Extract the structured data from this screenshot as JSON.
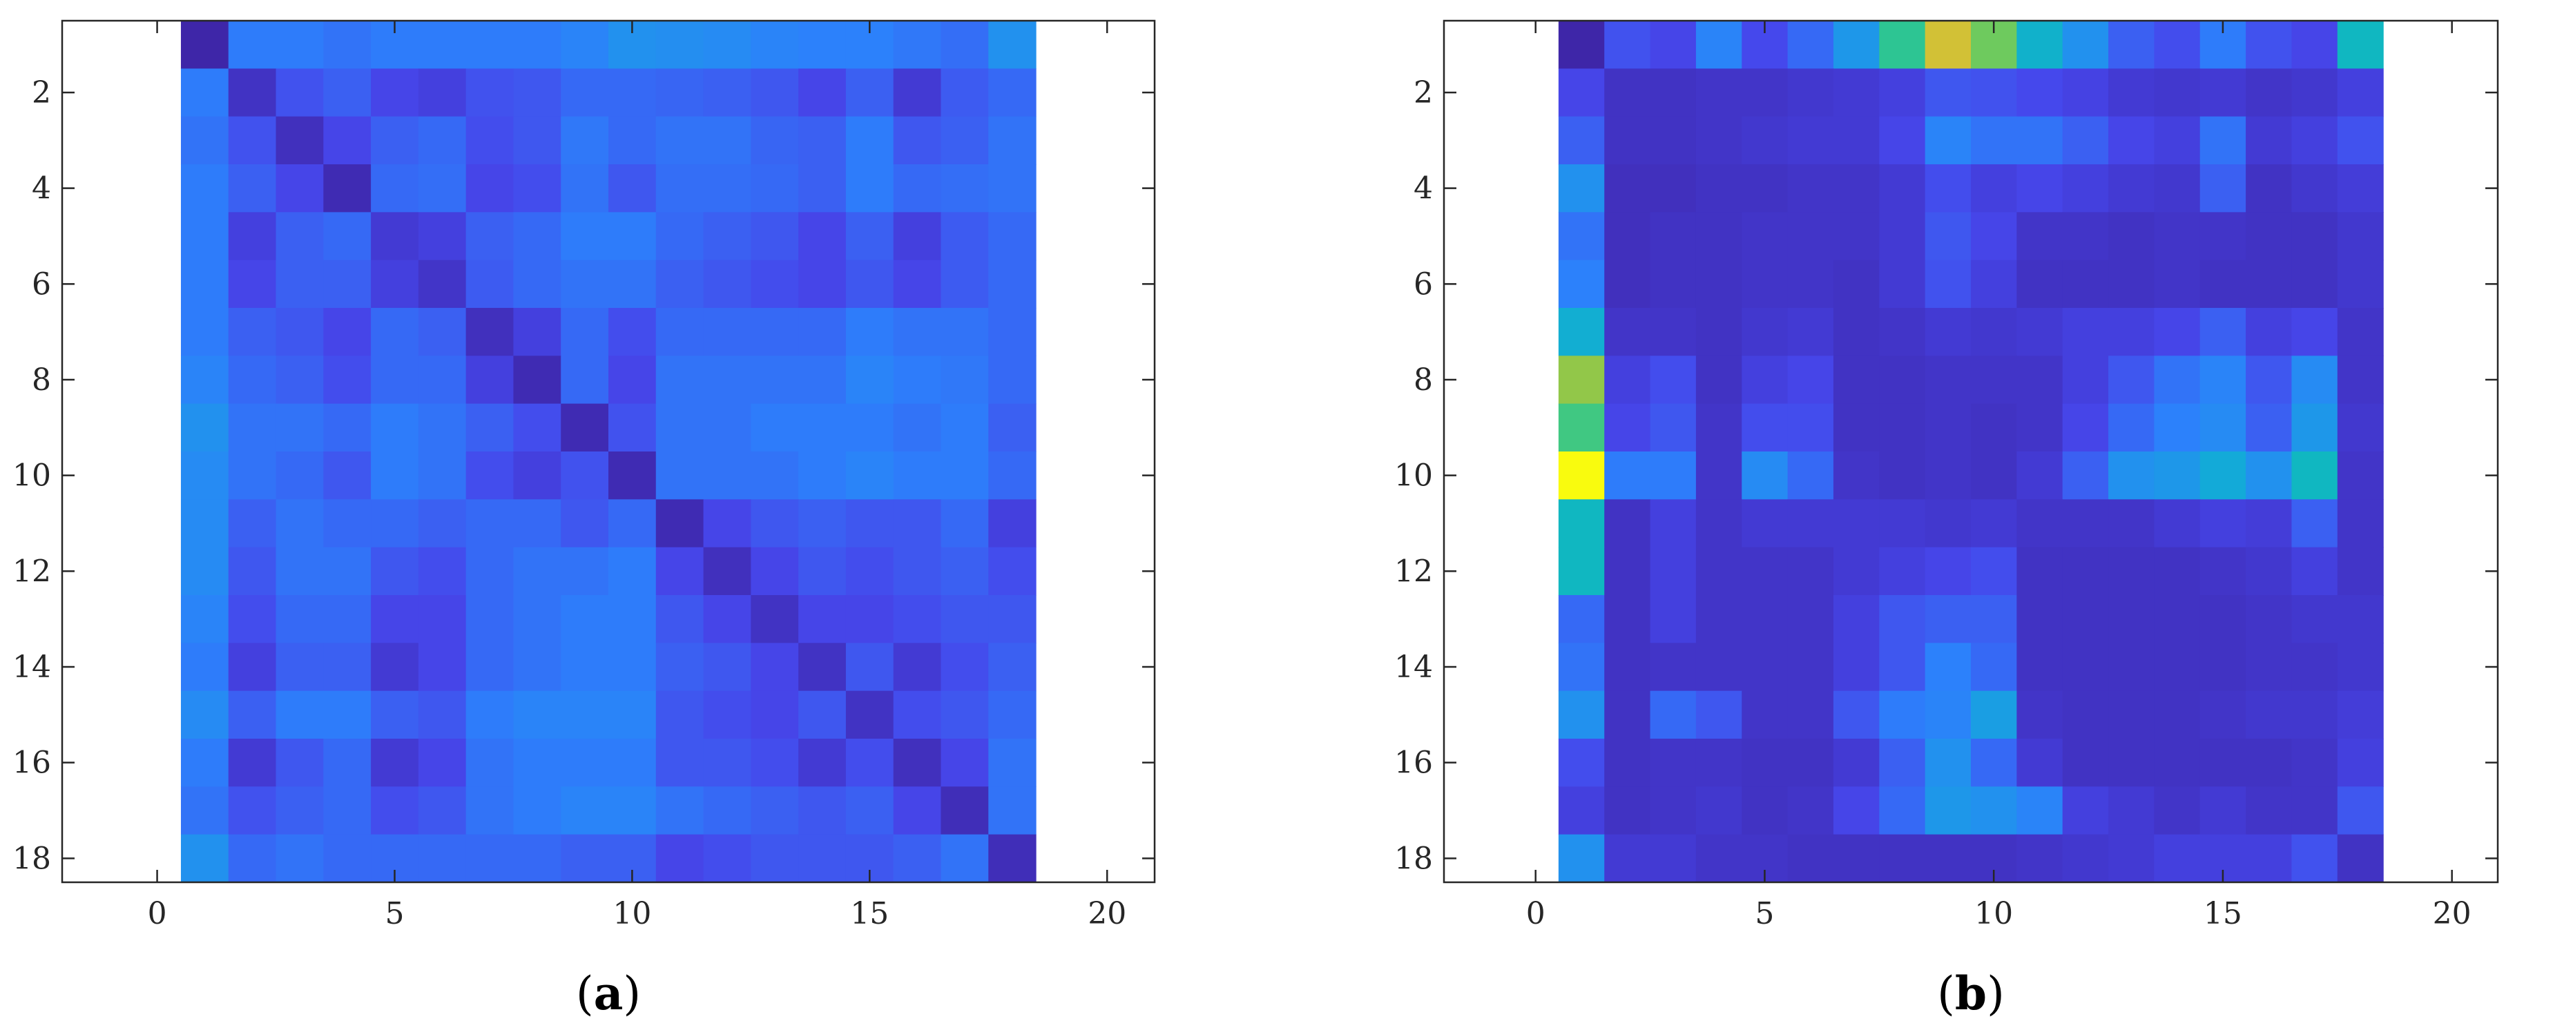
{
  "chart_data": [
    {
      "type": "heatmap",
      "panel_label": "a",
      "title": "",
      "xlabel": "",
      "ylabel": "",
      "xlim": [
        -2,
        21
      ],
      "ylim": [
        0.5,
        18.5
      ],
      "y_reversed": true,
      "x_ticks": [
        0,
        5,
        10,
        15,
        20
      ],
      "y_ticks": [
        2,
        4,
        6,
        8,
        10,
        12,
        14,
        16,
        18
      ],
      "colormap": "parula",
      "color_range": [
        0,
        1
      ],
      "rows": 18,
      "cols": 18,
      "values": [
        [
          0.0,
          0.24,
          0.24,
          0.22,
          0.24,
          0.24,
          0.24,
          0.24,
          0.26,
          0.3,
          0.29,
          0.28,
          0.26,
          0.25,
          0.25,
          0.23,
          0.21,
          0.3
        ],
        [
          0.24,
          0.05,
          0.15,
          0.18,
          0.12,
          0.1,
          0.15,
          0.16,
          0.2,
          0.2,
          0.19,
          0.18,
          0.16,
          0.12,
          0.18,
          0.08,
          0.17,
          0.2
        ],
        [
          0.22,
          0.15,
          0.04,
          0.12,
          0.18,
          0.2,
          0.14,
          0.16,
          0.23,
          0.2,
          0.22,
          0.22,
          0.19,
          0.18,
          0.24,
          0.16,
          0.18,
          0.22
        ],
        [
          0.24,
          0.18,
          0.12,
          0.02,
          0.2,
          0.21,
          0.12,
          0.14,
          0.22,
          0.16,
          0.21,
          0.21,
          0.2,
          0.18,
          0.24,
          0.2,
          0.21,
          0.22
        ],
        [
          0.24,
          0.1,
          0.18,
          0.2,
          0.08,
          0.1,
          0.18,
          0.2,
          0.24,
          0.24,
          0.2,
          0.18,
          0.16,
          0.12,
          0.18,
          0.1,
          0.17,
          0.2
        ],
        [
          0.24,
          0.12,
          0.18,
          0.18,
          0.1,
          0.06,
          0.17,
          0.2,
          0.22,
          0.22,
          0.18,
          0.16,
          0.14,
          0.12,
          0.16,
          0.12,
          0.17,
          0.2
        ],
        [
          0.24,
          0.18,
          0.16,
          0.12,
          0.2,
          0.18,
          0.04,
          0.1,
          0.2,
          0.14,
          0.2,
          0.2,
          0.2,
          0.2,
          0.24,
          0.22,
          0.22,
          0.2
        ],
        [
          0.26,
          0.2,
          0.18,
          0.14,
          0.2,
          0.2,
          0.1,
          0.02,
          0.2,
          0.12,
          0.22,
          0.22,
          0.22,
          0.22,
          0.26,
          0.24,
          0.23,
          0.2
        ],
        [
          0.3,
          0.22,
          0.22,
          0.2,
          0.24,
          0.22,
          0.18,
          0.14,
          0.02,
          0.15,
          0.22,
          0.22,
          0.24,
          0.24,
          0.24,
          0.22,
          0.24,
          0.18
        ],
        [
          0.28,
          0.22,
          0.2,
          0.16,
          0.24,
          0.22,
          0.14,
          0.1,
          0.15,
          0.02,
          0.22,
          0.22,
          0.22,
          0.24,
          0.26,
          0.24,
          0.24,
          0.2
        ],
        [
          0.28,
          0.18,
          0.22,
          0.2,
          0.2,
          0.18,
          0.2,
          0.2,
          0.16,
          0.2,
          0.02,
          0.12,
          0.16,
          0.18,
          0.16,
          0.16,
          0.2,
          0.1
        ],
        [
          0.28,
          0.16,
          0.22,
          0.22,
          0.16,
          0.14,
          0.2,
          0.22,
          0.22,
          0.24,
          0.12,
          0.04,
          0.12,
          0.16,
          0.14,
          0.16,
          0.18,
          0.14
        ],
        [
          0.26,
          0.14,
          0.2,
          0.2,
          0.12,
          0.12,
          0.2,
          0.22,
          0.24,
          0.24,
          0.16,
          0.12,
          0.05,
          0.12,
          0.12,
          0.14,
          0.16,
          0.16
        ],
        [
          0.24,
          0.1,
          0.18,
          0.18,
          0.08,
          0.12,
          0.2,
          0.22,
          0.24,
          0.24,
          0.18,
          0.16,
          0.12,
          0.05,
          0.16,
          0.08,
          0.14,
          0.18
        ],
        [
          0.28,
          0.18,
          0.24,
          0.24,
          0.18,
          0.16,
          0.24,
          0.26,
          0.26,
          0.26,
          0.16,
          0.14,
          0.12,
          0.16,
          0.05,
          0.14,
          0.16,
          0.2
        ],
        [
          0.24,
          0.08,
          0.16,
          0.2,
          0.08,
          0.12,
          0.22,
          0.24,
          0.24,
          0.24,
          0.16,
          0.16,
          0.14,
          0.08,
          0.14,
          0.04,
          0.12,
          0.22
        ],
        [
          0.22,
          0.15,
          0.18,
          0.2,
          0.14,
          0.16,
          0.22,
          0.24,
          0.26,
          0.26,
          0.22,
          0.2,
          0.18,
          0.16,
          0.18,
          0.12,
          0.03,
          0.22
        ],
        [
          0.3,
          0.2,
          0.22,
          0.2,
          0.2,
          0.2,
          0.2,
          0.2,
          0.18,
          0.18,
          0.12,
          0.14,
          0.16,
          0.16,
          0.16,
          0.18,
          0.22,
          0.03
        ]
      ]
    },
    {
      "type": "heatmap",
      "panel_label": "b",
      "title": "",
      "xlabel": "",
      "ylabel": "",
      "xlim": [
        -2,
        21
      ],
      "ylim": [
        0.5,
        18.5
      ],
      "y_reversed": true,
      "x_ticks": [
        0,
        5,
        10,
        15,
        20
      ],
      "y_ticks": [
        2,
        4,
        6,
        8,
        10,
        12,
        14,
        16,
        18
      ],
      "colormap": "parula",
      "color_range": [
        0,
        1
      ],
      "rows": 18,
      "cols": 18,
      "values": [
        [
          0.0,
          0.15,
          0.12,
          0.26,
          0.13,
          0.2,
          0.32,
          0.55,
          0.8,
          0.65,
          0.42,
          0.3,
          0.18,
          0.14,
          0.24,
          0.15,
          0.12,
          0.45
        ],
        [
          0.12,
          0.05,
          0.05,
          0.06,
          0.06,
          0.07,
          0.08,
          0.1,
          0.16,
          0.15,
          0.13,
          0.11,
          0.08,
          0.07,
          0.08,
          0.06,
          0.07,
          0.1
        ],
        [
          0.18,
          0.05,
          0.05,
          0.06,
          0.07,
          0.08,
          0.08,
          0.12,
          0.26,
          0.22,
          0.22,
          0.18,
          0.12,
          0.1,
          0.22,
          0.08,
          0.1,
          0.15
        ],
        [
          0.3,
          0.04,
          0.04,
          0.05,
          0.05,
          0.06,
          0.06,
          0.08,
          0.14,
          0.1,
          0.12,
          0.1,
          0.08,
          0.07,
          0.18,
          0.05,
          0.07,
          0.09
        ],
        [
          0.22,
          0.04,
          0.05,
          0.05,
          0.06,
          0.06,
          0.06,
          0.08,
          0.16,
          0.12,
          0.06,
          0.06,
          0.05,
          0.06,
          0.06,
          0.05,
          0.05,
          0.07
        ],
        [
          0.25,
          0.04,
          0.05,
          0.05,
          0.06,
          0.06,
          0.05,
          0.08,
          0.15,
          0.1,
          0.05,
          0.05,
          0.05,
          0.06,
          0.05,
          0.05,
          0.05,
          0.07
        ],
        [
          0.4,
          0.06,
          0.06,
          0.05,
          0.07,
          0.08,
          0.05,
          0.06,
          0.08,
          0.07,
          0.08,
          0.1,
          0.1,
          0.12,
          0.18,
          0.1,
          0.12,
          0.06
        ],
        [
          0.7,
          0.1,
          0.14,
          0.05,
          0.1,
          0.12,
          0.05,
          0.05,
          0.06,
          0.06,
          0.06,
          0.1,
          0.16,
          0.22,
          0.26,
          0.16,
          0.28,
          0.06
        ],
        [
          0.58,
          0.12,
          0.16,
          0.06,
          0.14,
          0.14,
          0.05,
          0.05,
          0.06,
          0.05,
          0.06,
          0.12,
          0.2,
          0.25,
          0.28,
          0.18,
          0.32,
          0.07
        ],
        [
          1.0,
          0.24,
          0.24,
          0.06,
          0.28,
          0.2,
          0.06,
          0.05,
          0.06,
          0.05,
          0.08,
          0.18,
          0.3,
          0.32,
          0.38,
          0.3,
          0.45,
          0.06
        ],
        [
          0.45,
          0.05,
          0.1,
          0.06,
          0.08,
          0.08,
          0.08,
          0.08,
          0.07,
          0.08,
          0.06,
          0.06,
          0.06,
          0.08,
          0.1,
          0.09,
          0.18,
          0.06
        ],
        [
          0.45,
          0.05,
          0.1,
          0.06,
          0.06,
          0.06,
          0.08,
          0.1,
          0.12,
          0.14,
          0.05,
          0.05,
          0.05,
          0.05,
          0.06,
          0.07,
          0.1,
          0.06
        ],
        [
          0.2,
          0.05,
          0.1,
          0.06,
          0.06,
          0.06,
          0.1,
          0.16,
          0.18,
          0.18,
          0.05,
          0.05,
          0.05,
          0.05,
          0.05,
          0.06,
          0.07,
          0.07
        ],
        [
          0.22,
          0.05,
          0.06,
          0.06,
          0.06,
          0.06,
          0.1,
          0.16,
          0.25,
          0.2,
          0.05,
          0.05,
          0.05,
          0.05,
          0.05,
          0.06,
          0.06,
          0.07
        ],
        [
          0.3,
          0.05,
          0.2,
          0.16,
          0.06,
          0.06,
          0.16,
          0.24,
          0.26,
          0.34,
          0.06,
          0.05,
          0.05,
          0.05,
          0.06,
          0.07,
          0.07,
          0.09
        ],
        [
          0.14,
          0.05,
          0.06,
          0.06,
          0.05,
          0.05,
          0.08,
          0.18,
          0.3,
          0.2,
          0.08,
          0.05,
          0.05,
          0.05,
          0.05,
          0.05,
          0.06,
          0.1
        ],
        [
          0.1,
          0.05,
          0.06,
          0.07,
          0.05,
          0.06,
          0.12,
          0.2,
          0.32,
          0.3,
          0.26,
          0.1,
          0.08,
          0.06,
          0.08,
          0.06,
          0.06,
          0.16
        ],
        [
          0.3,
          0.08,
          0.08,
          0.06,
          0.06,
          0.05,
          0.05,
          0.05,
          0.05,
          0.05,
          0.06,
          0.07,
          0.08,
          0.1,
          0.1,
          0.1,
          0.15,
          0.05
        ]
      ]
    }
  ]
}
